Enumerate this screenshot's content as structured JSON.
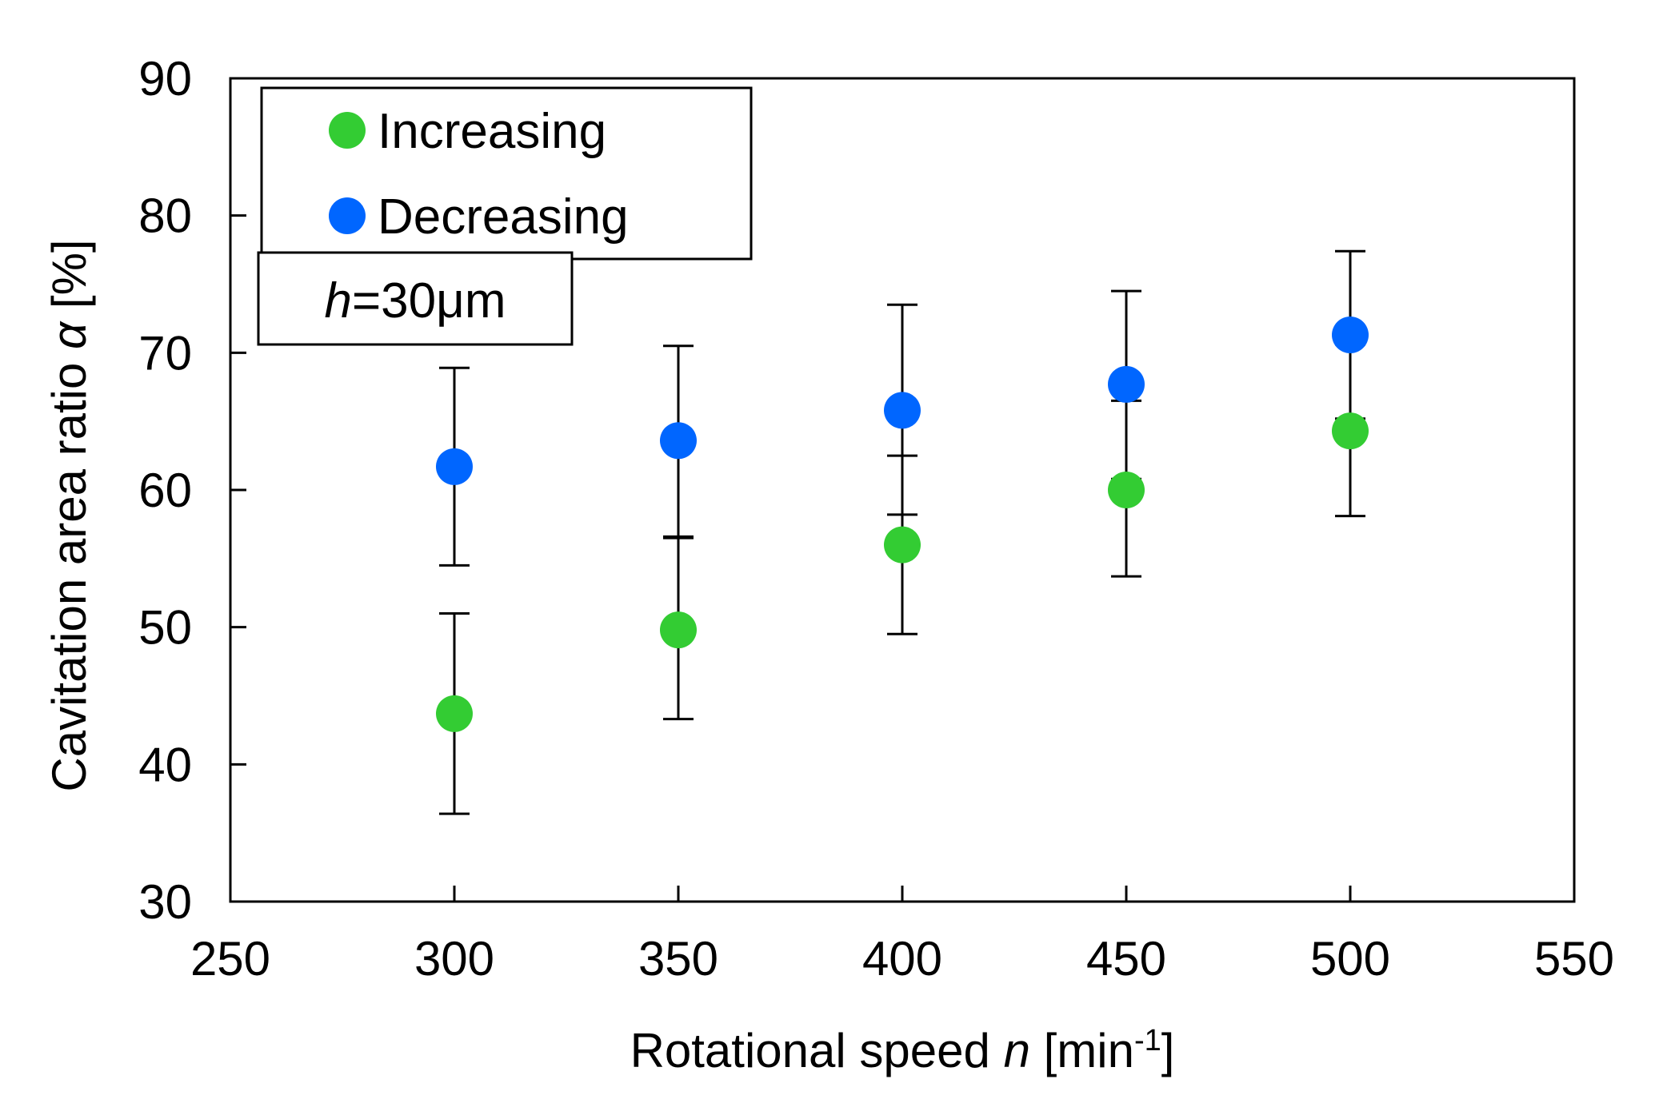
{
  "chart_data": {
    "type": "scatter",
    "xlabel": {
      "main": "Rotational speed ",
      "var": "n",
      "unit_pre": " [min",
      "sup": "-1",
      "unit_post": "]"
    },
    "ylabel": {
      "main": "Cavitation area ratio ",
      "var": "α",
      "unit": " [%]"
    },
    "xlim": [
      250,
      550
    ],
    "ylim": [
      30,
      90
    ],
    "xticks": [
      250,
      300,
      350,
      400,
      450,
      500,
      550
    ],
    "yticks": [
      30,
      40,
      50,
      60,
      70,
      80,
      90
    ],
    "grid": false,
    "legend_position": "top-left",
    "annotation": {
      "var": "h",
      "text": "=30μm"
    },
    "series": [
      {
        "name": "Increasing",
        "color": "#33cc33",
        "points": [
          {
            "x": 300,
            "y": 43.7,
            "low": 36.4,
            "high": 51.0
          },
          {
            "x": 350,
            "y": 49.8,
            "low": 43.3,
            "high": 56.5
          },
          {
            "x": 400,
            "y": 56.0,
            "low": 49.5,
            "high": 62.5
          },
          {
            "x": 450,
            "y": 60.0,
            "low": 53.7,
            "high": 66.5
          },
          {
            "x": 500,
            "y": 64.3,
            "low": 58.1,
            "high": 70.6
          }
        ]
      },
      {
        "name": "Decreasing",
        "color": "#0066ff",
        "points": [
          {
            "x": 300,
            "y": 61.7,
            "low": 54.5,
            "high": 68.9
          },
          {
            "x": 350,
            "y": 63.6,
            "low": 56.6,
            "high": 70.5
          },
          {
            "x": 400,
            "y": 65.8,
            "low": 58.2,
            "high": 73.5
          },
          {
            "x": 450,
            "y": 67.7,
            "low": 60.8,
            "high": 74.5
          },
          {
            "x": 500,
            "y": 71.3,
            "low": 65.2,
            "high": 77.4
          }
        ]
      }
    ]
  }
}
